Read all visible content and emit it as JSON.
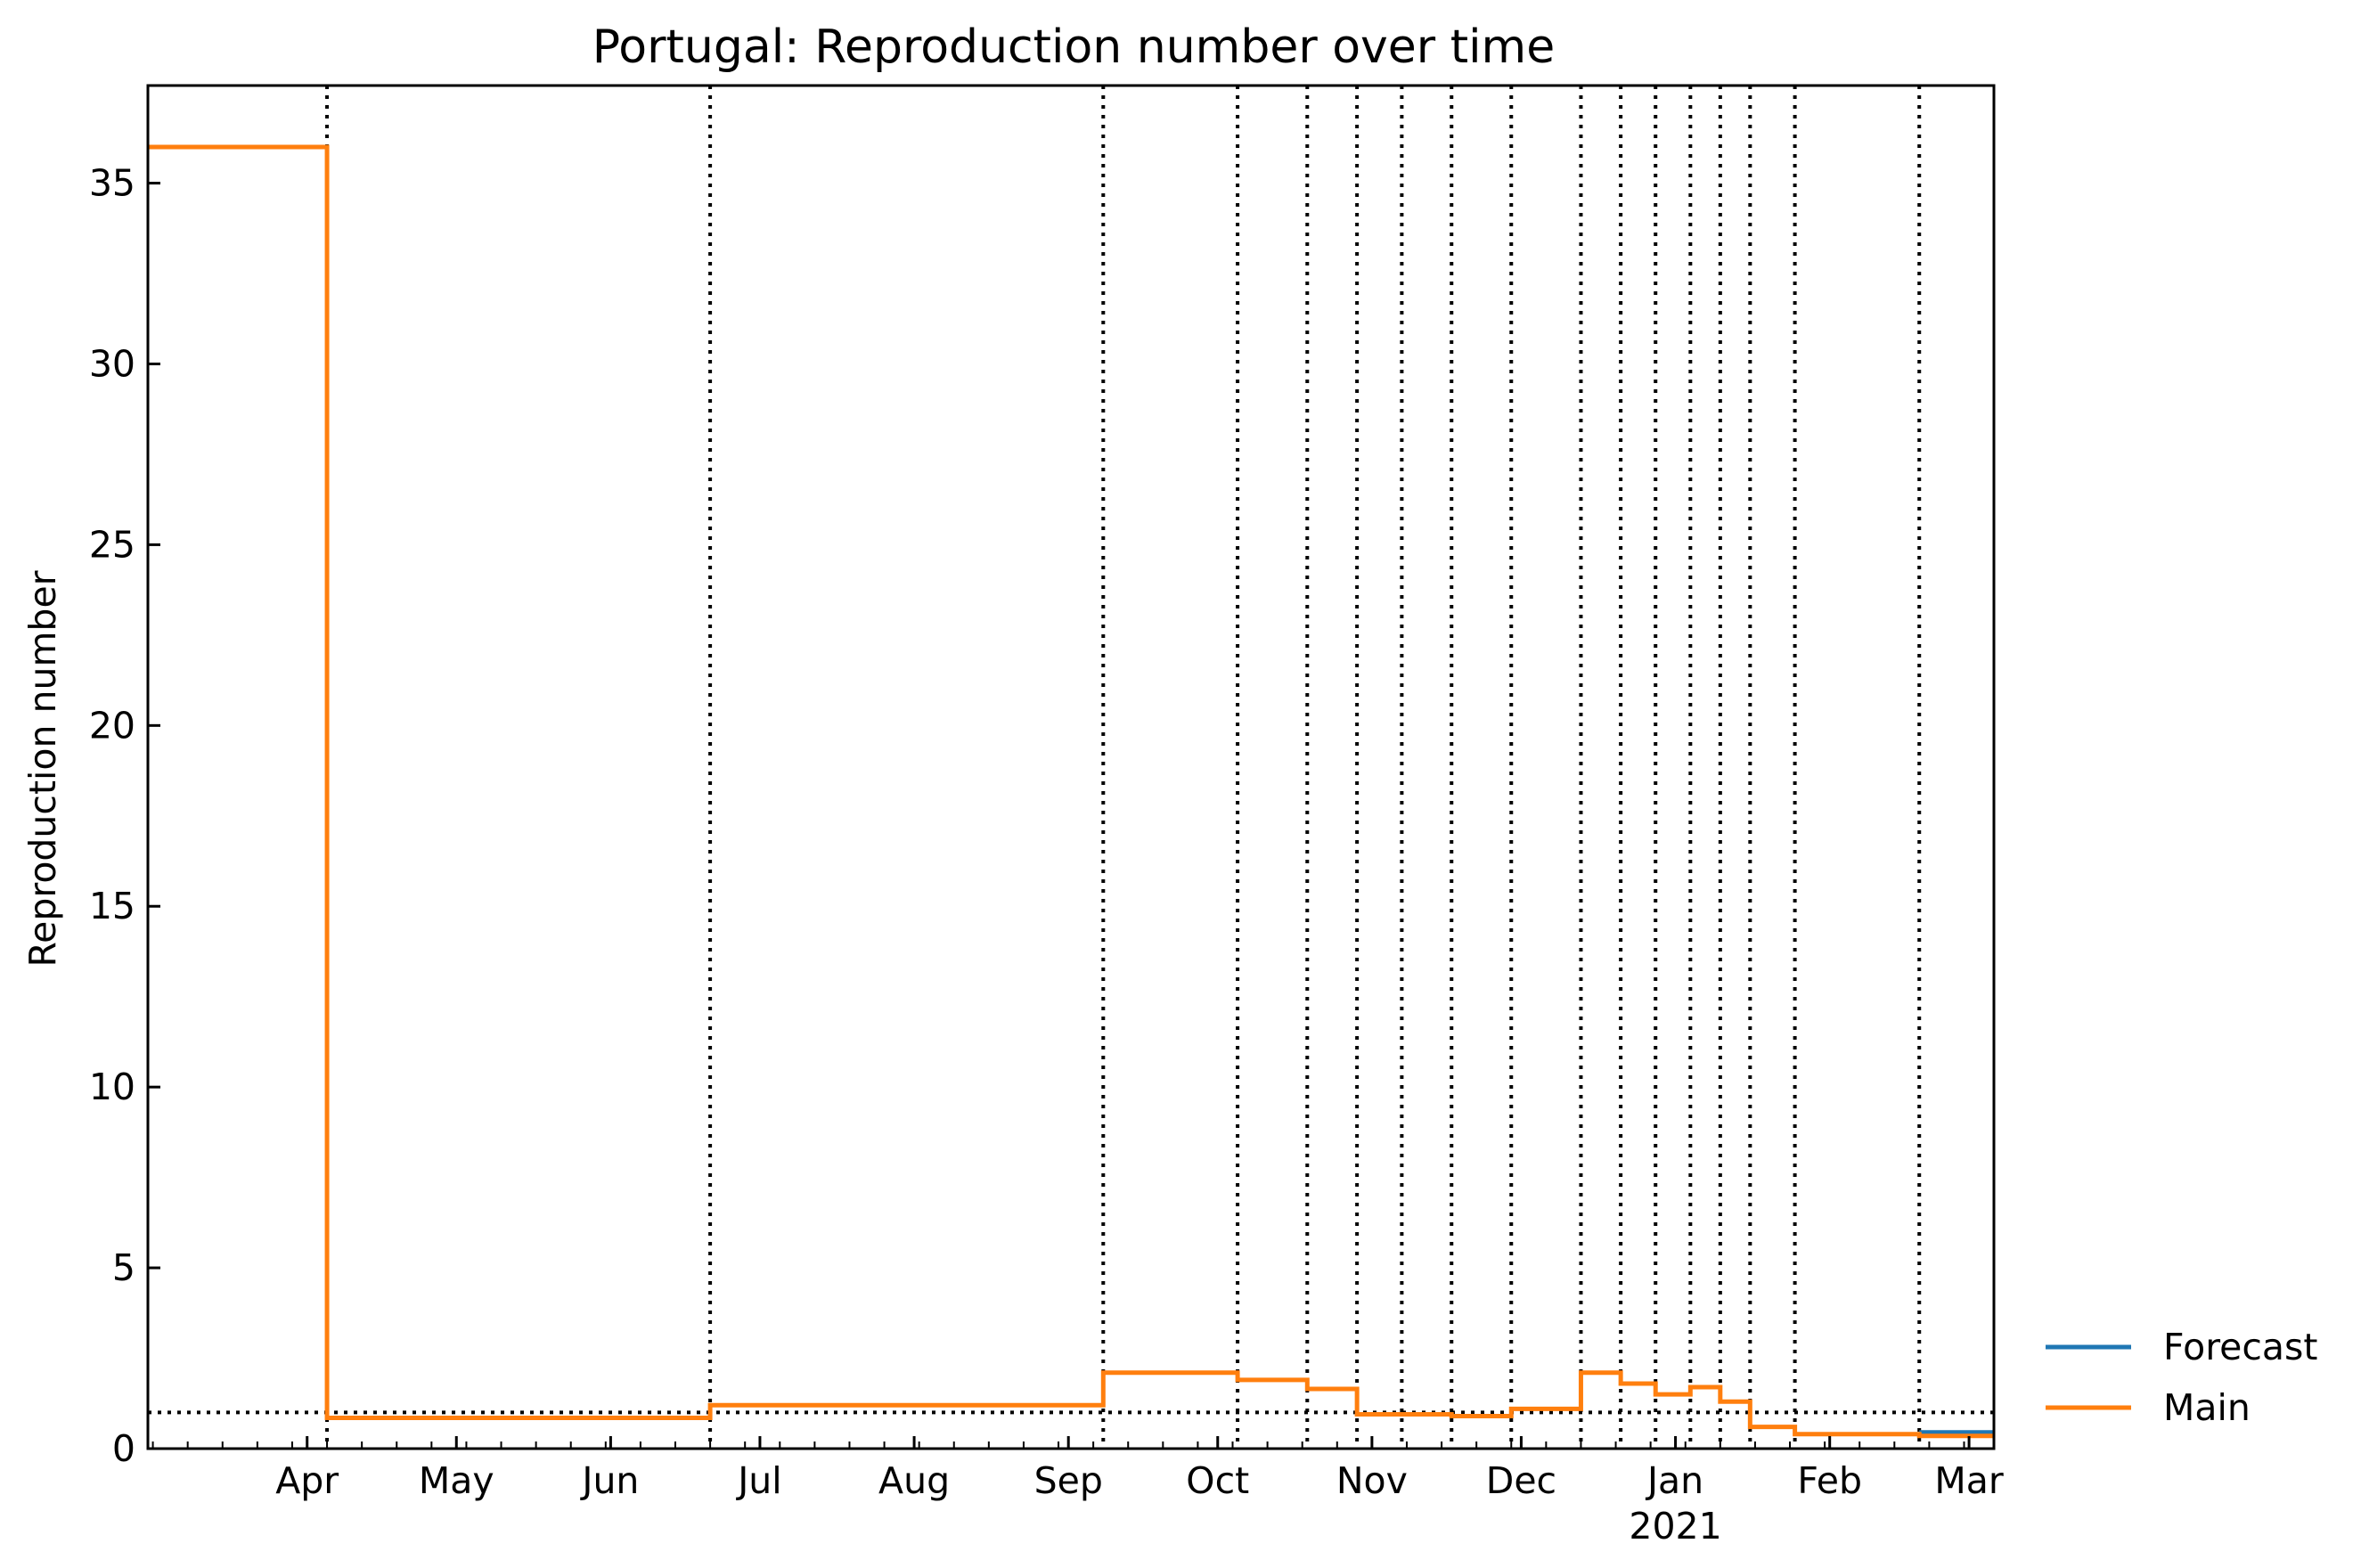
{
  "chart_data": {
    "type": "line",
    "title": "Portugal: Reproduction number over time",
    "xlabel": "",
    "ylabel": "Reproduction number",
    "xlim": [
      "2020-03-14",
      "2021-03-20"
    ],
    "ylim": [
      0,
      37.7
    ],
    "yticks": [
      0,
      5,
      10,
      15,
      20,
      25,
      30,
      35
    ],
    "xticks": [
      {
        "date": "2020-04-01",
        "label": "Apr"
      },
      {
        "date": "2020-05-01",
        "label": "May"
      },
      {
        "date": "2020-06-01",
        "label": "Jun"
      },
      {
        "date": "2020-07-01",
        "label": "Jul"
      },
      {
        "date": "2020-08-01",
        "label": "Aug"
      },
      {
        "date": "2020-09-01",
        "label": "Sep"
      },
      {
        "date": "2020-10-01",
        "label": "Oct"
      },
      {
        "date": "2020-11-01",
        "label": "Nov"
      },
      {
        "date": "2020-12-01",
        "label": "Dec"
      },
      {
        "date": "2021-01-01",
        "label": "Jan",
        "sublabel": "2021"
      },
      {
        "date": "2021-02-01",
        "label": "Feb"
      },
      {
        "date": "2021-03-01",
        "label": "Mar"
      }
    ],
    "grid": false,
    "legend_position": "outside-right-bottom",
    "reference_line_y": 1,
    "changepoints": [
      "2020-04-19",
      "2020-07-05",
      "2020-09-22",
      "2020-10-19",
      "2020-11-02",
      "2020-11-12",
      "2020-11-21",
      "2020-12-01",
      "2020-12-13",
      "2020-12-27",
      "2021-01-04",
      "2021-01-11",
      "2021-01-18",
      "2021-01-24",
      "2021-01-30",
      "2021-02-08",
      "2021-03-05"
    ],
    "series": [
      {
        "name": "Forecast",
        "color": "#1f77b4",
        "x": [
          "2021-03-05",
          "2021-03-20"
        ],
        "y": [
          0.45,
          0.45
        ]
      },
      {
        "name": "Main",
        "color": "#ff7f0e",
        "x": [
          "2020-03-14",
          "2020-04-19",
          "2020-07-05",
          "2020-09-22",
          "2020-10-19",
          "2020-11-02",
          "2020-11-12",
          "2020-11-21",
          "2020-12-01",
          "2020-12-13",
          "2020-12-27",
          "2021-01-04",
          "2021-01-11",
          "2021-01-18",
          "2021-01-24",
          "2021-01-30",
          "2021-02-08",
          "2021-03-05"
        ],
        "y": [
          36.0,
          0.85,
          1.2,
          2.1,
          1.9,
          1.65,
          0.95,
          0.95,
          0.9,
          1.1,
          2.1,
          1.8,
          1.5,
          1.7,
          1.3,
          0.6,
          0.4,
          0.35
        ]
      }
    ]
  }
}
